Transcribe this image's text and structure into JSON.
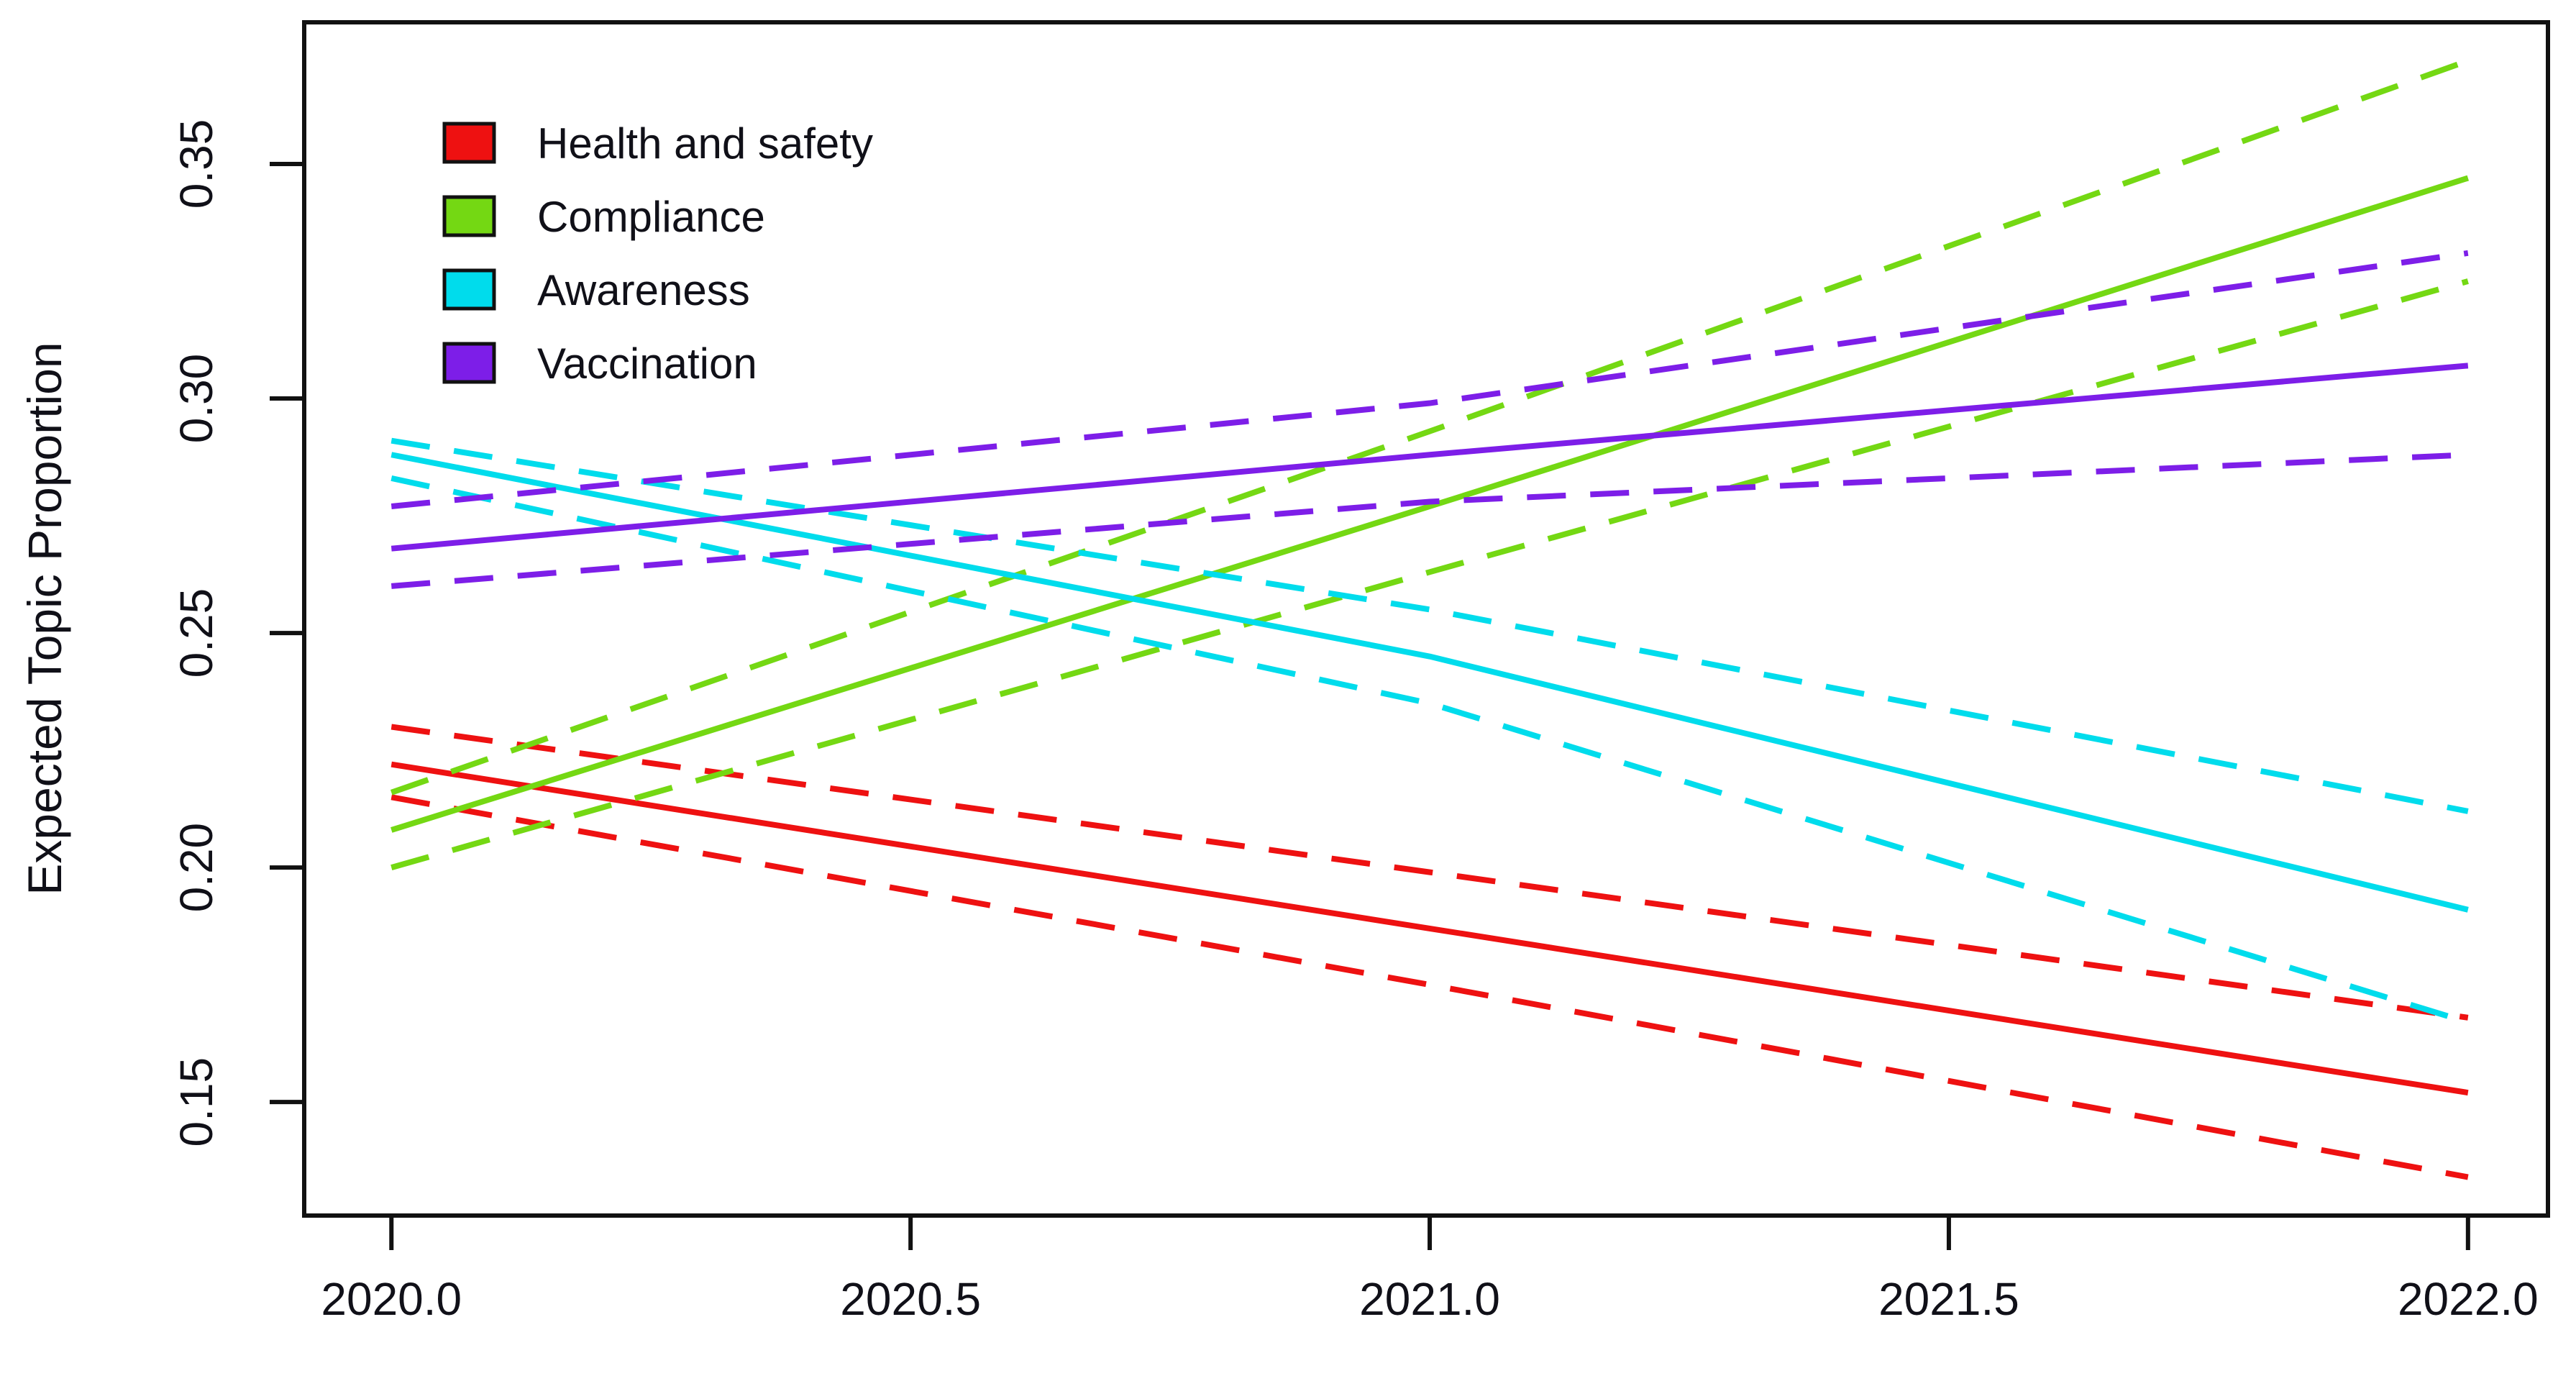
{
  "chart_data": {
    "type": "line",
    "title": "",
    "xlabel": "",
    "ylabel": "Expected Topic Proportion",
    "x_ticks": [
      2020.0,
      2020.5,
      2021.0,
      2021.5,
      2022.0
    ],
    "x_tick_labels": [
      "2020.0",
      "2020.5",
      "2021.0",
      "2021.5",
      "2022.0"
    ],
    "y_ticks": [
      0.15,
      0.2,
      0.25,
      0.3,
      0.35
    ],
    "y_tick_labels": [
      "0.15",
      "0.20",
      "0.25",
      "0.30",
      "0.35"
    ],
    "xlim": [
      2019.916,
      2022.077
    ],
    "ylim": [
      0.1258,
      0.3802
    ],
    "grid": false,
    "legend_position": "top-left",
    "colors": {
      "health_and_safety": "#EE1111",
      "compliance": "#74D813",
      "awareness": "#00DCEC",
      "vaccination": "#7D1EE8",
      "axis": "#111111"
    },
    "series": [
      {
        "name": "Health and safety",
        "color": "#EE1111",
        "style": "solid",
        "x": [
          2020.0,
          2021.0,
          2022.0
        ],
        "values": [
          0.222,
          0.187,
          0.152
        ]
      },
      {
        "name": "Health and safety CI upper",
        "color": "#EE1111",
        "style": "dashed",
        "x": [
          2020.0,
          2021.0,
          2022.0
        ],
        "values": [
          0.23,
          0.199,
          0.168
        ]
      },
      {
        "name": "Health and safety CI lower",
        "color": "#EE1111",
        "style": "dashed",
        "x": [
          2020.0,
          2021.0,
          2022.0
        ],
        "values": [
          0.215,
          0.175,
          0.134
        ]
      },
      {
        "name": "Compliance",
        "color": "#74D813",
        "style": "solid",
        "x": [
          2020.0,
          2021.0,
          2022.0
        ],
        "values": [
          0.208,
          0.277,
          0.347
        ]
      },
      {
        "name": "Compliance CI upper",
        "color": "#74D813",
        "style": "dashed",
        "x": [
          2020.0,
          2021.0,
          2022.0
        ],
        "values": [
          0.216,
          0.293,
          0.372
        ]
      },
      {
        "name": "Compliance CI lower",
        "color": "#74D813",
        "style": "dashed",
        "x": [
          2020.0,
          2021.0,
          2022.0
        ],
        "values": [
          0.2,
          0.263,
          0.325
        ]
      },
      {
        "name": "Awareness",
        "color": "#00DCEC",
        "style": "solid",
        "x": [
          2020.0,
          2021.0,
          2022.0
        ],
        "values": [
          0.288,
          0.245,
          0.191
        ]
      },
      {
        "name": "Awareness CI upper",
        "color": "#00DCEC",
        "style": "dashed",
        "x": [
          2020.0,
          2021.0,
          2022.0
        ],
        "values": [
          0.291,
          0.255,
          0.212
        ]
      },
      {
        "name": "Awareness CI lower",
        "color": "#00DCEC",
        "style": "dashed",
        "x": [
          2020.0,
          2021.0,
          2022.0
        ],
        "values": [
          0.283,
          0.235,
          0.167
        ]
      },
      {
        "name": "Vaccination",
        "color": "#7D1EE8",
        "style": "solid",
        "x": [
          2020.0,
          2021.0,
          2022.0
        ],
        "values": [
          0.268,
          0.288,
          0.307
        ]
      },
      {
        "name": "Vaccination CI upper",
        "color": "#7D1EE8",
        "style": "dashed",
        "x": [
          2020.0,
          2021.0,
          2022.0
        ],
        "values": [
          0.277,
          0.299,
          0.331
        ]
      },
      {
        "name": "Vaccination CI lower",
        "color": "#7D1EE8",
        "style": "dashed",
        "x": [
          2020.0,
          2021.0,
          2022.0
        ],
        "values": [
          0.26,
          0.278,
          0.288
        ]
      }
    ],
    "legend": [
      {
        "label": "Health and safety",
        "color": "#EE1111"
      },
      {
        "label": "Compliance",
        "color": "#74D813"
      },
      {
        "label": "Awareness",
        "color": "#00DCEC"
      },
      {
        "label": "Vaccination",
        "color": "#7D1EE8"
      }
    ]
  }
}
